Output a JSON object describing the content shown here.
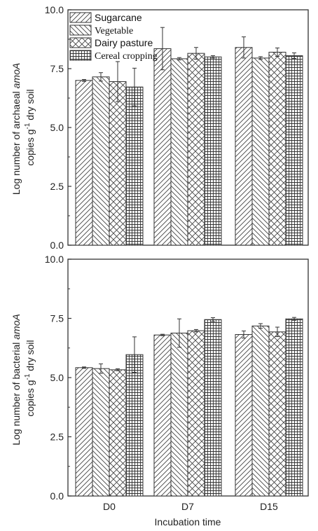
{
  "chart_data": [
    {
      "type": "bar",
      "categories": [
        "D0",
        "D7",
        "D15"
      ],
      "ylim": [
        0,
        10
      ],
      "yticks": [
        "0.0",
        "2.5",
        "5.0",
        "7.5",
        "10.0"
      ],
      "ylabel": {
        "line1": "Log number of archaeal ",
        "line1_italic": "amoA",
        "line2_a": "copies g",
        "line2_sup": "-1",
        "line2_b": " dry soil"
      },
      "legend_position": "top-left",
      "series": [
        {
          "name": "Sugarcane",
          "pattern": "diag-right",
          "values": [
            7.0,
            8.35,
            8.4
          ],
          "errors": [
            0.04,
            0.9,
            0.45
          ]
        },
        {
          "name": "Vegetable",
          "pattern": "diag-left",
          "values": [
            7.15,
            7.92,
            7.95
          ],
          "errors": [
            0.18,
            0.05,
            0.06
          ]
        },
        {
          "name": "Dairy pasture",
          "pattern": "crosshatch-diag",
          "values": [
            6.95,
            8.15,
            8.2
          ],
          "errors": [
            0.85,
            0.25,
            0.18
          ]
        },
        {
          "name": "Cereal cropping",
          "pattern": "grid",
          "values": [
            6.72,
            8.0,
            8.05
          ],
          "errors": [
            0.8,
            0.05,
            0.12
          ]
        }
      ]
    },
    {
      "type": "bar",
      "categories": [
        "D0",
        "D7",
        "D15"
      ],
      "ylim": [
        0,
        10
      ],
      "yticks": [
        "0.0",
        "2.5",
        "5.0",
        "7.5",
        "10.0"
      ],
      "xlabel": "Incubation time",
      "ylabel": {
        "line1": "Log number of bacterial ",
        "line1_italic": "amoA",
        "line2_a": "copies g",
        "line2_sup": "-1",
        "line2_b": " dry soil"
      },
      "series": [
        {
          "name": "Sugarcane",
          "pattern": "diag-right",
          "values": [
            5.42,
            6.8,
            6.82
          ],
          "errors": [
            0.03,
            0.03,
            0.15
          ]
        },
        {
          "name": "Vegetable",
          "pattern": "diag-left",
          "values": [
            5.38,
            6.88,
            7.18
          ],
          "errors": [
            0.2,
            0.6,
            0.1
          ]
        },
        {
          "name": "Dairy pasture",
          "pattern": "crosshatch-diag",
          "values": [
            5.33,
            6.98,
            6.93
          ],
          "errors": [
            0.04,
            0.05,
            0.2
          ]
        },
        {
          "name": "Cereal cropping",
          "pattern": "grid",
          "values": [
            5.97,
            7.45,
            7.48
          ],
          "errors": [
            0.75,
            0.08,
            0.06
          ]
        }
      ]
    }
  ]
}
